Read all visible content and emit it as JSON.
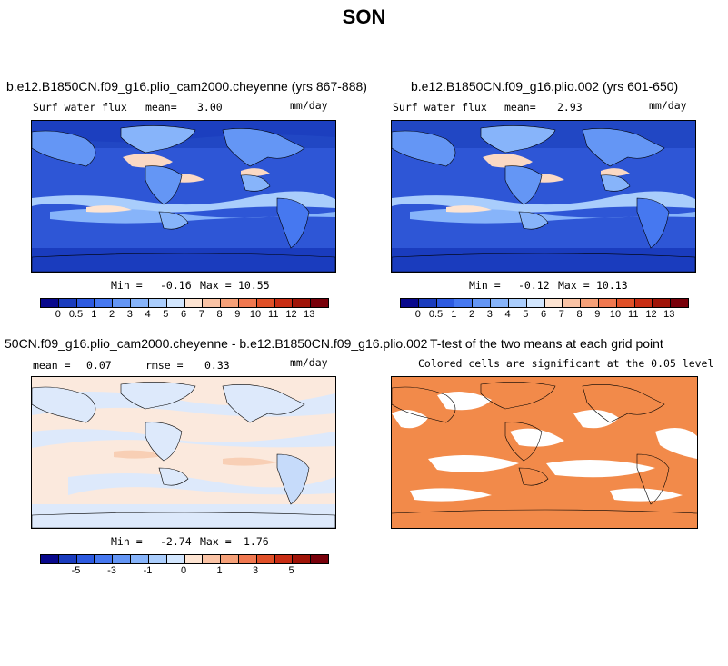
{
  "page": {
    "title": "SON"
  },
  "panels": {
    "top_left": {
      "title": "b.e12.B1850CN.f09_g16.plio_cam2000.cheyenne (yrs 867-888)",
      "var_label": "Surf water flux",
      "stat_label": "mean=",
      "stat_value": "3.00",
      "units": "mm/day",
      "min_label": "Min =",
      "min_value": "-0.16",
      "max_label": "Max =",
      "max_value": "10.55"
    },
    "top_right": {
      "title": "b.e12.B1850CN.f09_g16.plio.002 (yrs 601-650)",
      "var_label": "Surf water flux",
      "stat_label": "mean=",
      "stat_value": "2.93",
      "units": "mm/day",
      "min_label": "Min =",
      "min_value": "-0.12",
      "max_label": "Max =",
      "max_value": "10.13"
    },
    "bottom_left": {
      "title": "50CN.f09_g16.plio_cam2000.cheyenne - b.e12.B1850CN.f09_g16.plio.002",
      "stat1_label": "mean =",
      "stat1_value": "0.07",
      "stat2_label": "rmse =",
      "stat2_value": "0.33",
      "units": "mm/day",
      "min_label": "Min =",
      "min_value": "-2.74",
      "max_label": "Max =",
      "max_value": "1.76"
    },
    "bottom_right": {
      "title": "T-test of the two means at each grid point",
      "subtitle": "Colored cells are significant at the 0.05 level"
    }
  },
  "colorbars": {
    "absolute": {
      "colors": [
        "#08088c",
        "#1a3cbe",
        "#2d5ae0",
        "#4678f0",
        "#6496f5",
        "#87b4fa",
        "#aacdfc",
        "#d2e6fe",
        "#fde4d2",
        "#fac3a5",
        "#f5a078",
        "#f07850",
        "#e05028",
        "#c82d14",
        "#a01408",
        "#78000a"
      ],
      "tick_labels": [
        "0",
        "0.5",
        "1",
        "2",
        "3",
        "4",
        "5",
        "6",
        "7",
        "8",
        "9",
        "10",
        "11",
        "12",
        "13"
      ]
    },
    "difference": {
      "colors": [
        "#08088c",
        "#1a3cbe",
        "#2d5ae0",
        "#4678f0",
        "#6496f5",
        "#87b4fa",
        "#aacdfc",
        "#d2e6fe",
        "#fde4d2",
        "#fac3a5",
        "#f5a078",
        "#f07850",
        "#e05028",
        "#c82d14",
        "#a01408",
        "#78000a"
      ],
      "tick_labels": [
        "-5",
        "-3",
        "-1",
        "0",
        "1",
        "3",
        "5"
      ]
    }
  },
  "colors": {
    "ocean_dark": "#1f45c8",
    "ocean_mid": "#3d6ae8",
    "itcz_light": "#b9d8fb",
    "warm_band": "#fbd9c4",
    "diff_bg": "#dde9fb",
    "diff_warm": "#fbe6d8",
    "ttest_orange": "#f28a4a"
  }
}
